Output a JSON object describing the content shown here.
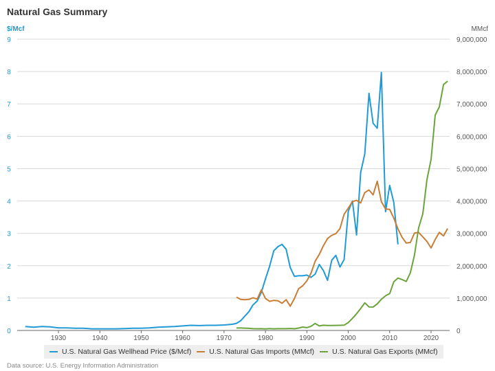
{
  "chart_data": {
    "type": "line",
    "title": "Natural Gas Summary",
    "ylabel_left": "$/Mcf",
    "ylabel_right": "MMcf",
    "xlabel": "",
    "xlim": [
      1921,
      2025
    ],
    "ylim_left": [
      0,
      9
    ],
    "ylim_right": [
      0,
      9000000
    ],
    "grid": true,
    "legend_position": "bottom",
    "x_ticks": [
      1930,
      1940,
      1950,
      1960,
      1970,
      1980,
      1990,
      2000,
      2010,
      2020
    ],
    "y_left_ticks": [
      0,
      1,
      2,
      3,
      4,
      5,
      6,
      7,
      8,
      9
    ],
    "y_right_ticks": [
      "0",
      "1,000,000",
      "2,000,000",
      "3,000,000",
      "4,000,000",
      "5,000,000",
      "6,000,000",
      "7,000,000",
      "8,000,000",
      "9,000,000"
    ],
    "y_right_tick_values": [
      0,
      1000000,
      2000000,
      3000000,
      4000000,
      5000000,
      6000000,
      7000000,
      8000000,
      9000000
    ],
    "source": "Data source: U.S. Energy Information Administration",
    "series": [
      {
        "name": "U.S. Natural Gas Wellhead Price ($/Mcf)",
        "axis": "left",
        "color": "#1f9ad6",
        "x": [
          1922,
          1924,
          1926,
          1928,
          1930,
          1932,
          1934,
          1936,
          1938,
          1940,
          1942,
          1944,
          1946,
          1948,
          1950,
          1952,
          1954,
          1956,
          1958,
          1960,
          1962,
          1964,
          1966,
          1968,
          1970,
          1971,
          1972,
          1973,
          1974,
          1975,
          1976,
          1977,
          1978,
          1979,
          1980,
          1981,
          1982,
          1983,
          1984,
          1985,
          1986,
          1987,
          1988,
          1989,
          1990,
          1991,
          1992,
          1993,
          1994,
          1995,
          1996,
          1997,
          1998,
          1999,
          2000,
          2001,
          2002,
          2003,
          2004,
          2005,
          2006,
          2007,
          2008,
          2009,
          2010,
          2011,
          2012
        ],
        "values": [
          0.12,
          0.1,
          0.12,
          0.11,
          0.08,
          0.08,
          0.07,
          0.07,
          0.05,
          0.05,
          0.05,
          0.05,
          0.06,
          0.07,
          0.07,
          0.08,
          0.1,
          0.11,
          0.12,
          0.14,
          0.16,
          0.15,
          0.16,
          0.16,
          0.17,
          0.18,
          0.19,
          0.22,
          0.3,
          0.44,
          0.58,
          0.79,
          0.91,
          1.18,
          1.59,
          1.98,
          2.46,
          2.59,
          2.66,
          2.51,
          1.94,
          1.67,
          1.69,
          1.69,
          1.71,
          1.64,
          1.74,
          2.04,
          1.85,
          1.55,
          2.17,
          2.32,
          1.96,
          2.19,
          3.68,
          4.0,
          2.95,
          4.88,
          5.46,
          7.33,
          6.4,
          6.25,
          7.97,
          3.67,
          4.48,
          3.95,
          2.66
        ]
      },
      {
        "name": "U.S. Natural Gas Imports (MMcf)",
        "axis": "right",
        "color": "#c87d35",
        "x": [
          1973,
          1974,
          1975,
          1976,
          1977,
          1978,
          1979,
          1980,
          1981,
          1982,
          1983,
          1984,
          1985,
          1986,
          1987,
          1988,
          1989,
          1990,
          1991,
          1992,
          1993,
          1994,
          1995,
          1996,
          1997,
          1998,
          1999,
          2000,
          2001,
          2002,
          2003,
          2004,
          2005,
          2006,
          2007,
          2008,
          2009,
          2010,
          2011,
          2012,
          2013,
          2014,
          2015,
          2016,
          2017,
          2018,
          2019,
          2020,
          2021,
          2022,
          2023,
          2024
        ],
        "values": [
          1030000,
          960000,
          950000,
          960000,
          1010000,
          970000,
          1250000,
          990000,
          900000,
          930000,
          920000,
          840000,
          950000,
          750000,
          990000,
          1290000,
          1380000,
          1530000,
          1770000,
          2140000,
          2350000,
          2620000,
          2840000,
          2940000,
          2990000,
          3150000,
          3590000,
          3780000,
          3980000,
          4020000,
          3940000,
          4260000,
          4340000,
          4190000,
          4610000,
          3980000,
          3750000,
          3740000,
          3470000,
          3140000,
          2880000,
          2700000,
          2720000,
          3010000,
          3030000,
          2890000,
          2750000,
          2550000,
          2810000,
          3030000,
          2920000,
          3150000
        ]
      },
      {
        "name": "U.S. Natural Gas Exports (MMcf)",
        "axis": "right",
        "color": "#6aa33a",
        "x": [
          1973,
          1974,
          1975,
          1976,
          1977,
          1978,
          1979,
          1980,
          1981,
          1982,
          1983,
          1984,
          1985,
          1986,
          1987,
          1988,
          1989,
          1990,
          1991,
          1992,
          1993,
          1994,
          1995,
          1996,
          1997,
          1998,
          1999,
          2000,
          2001,
          2002,
          2003,
          2004,
          2005,
          2006,
          2007,
          2008,
          2009,
          2010,
          2011,
          2012,
          2013,
          2014,
          2015,
          2016,
          2017,
          2018,
          2019,
          2020,
          2021,
          2022,
          2023,
          2024
        ],
        "values": [
          77000,
          77000,
          73000,
          65000,
          56000,
          53000,
          56000,
          49000,
          59000,
          52000,
          55000,
          55000,
          55000,
          61000,
          54000,
          74000,
          107000,
          86000,
          129000,
          216000,
          140000,
          162000,
          154000,
          153000,
          157000,
          159000,
          163000,
          244000,
          373000,
          516000,
          680000,
          854000,
          729000,
          724000,
          822000,
          963000,
          1072000,
          1137000,
          1506000,
          1619000,
          1572000,
          1514000,
          1784000,
          2335000,
          3171000,
          3606000,
          4659000,
          5284000,
          6653000,
          6904000,
          7600000,
          7700000
        ]
      }
    ]
  }
}
